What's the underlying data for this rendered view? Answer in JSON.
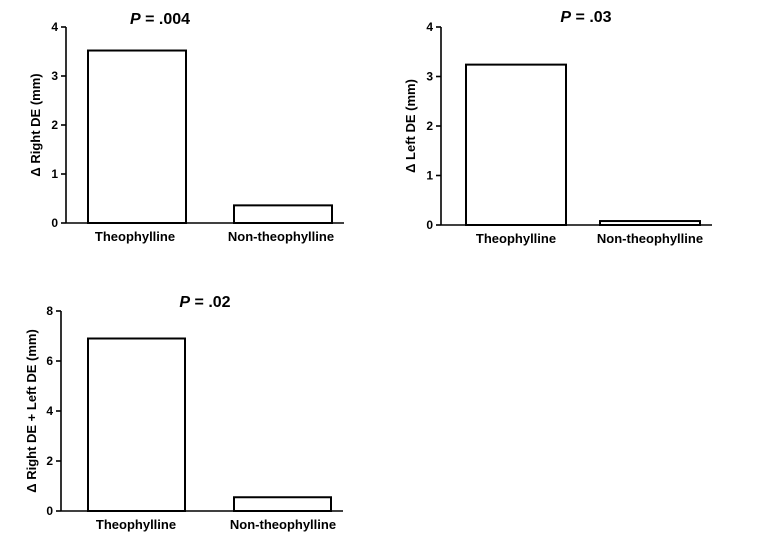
{
  "chart_data": [
    {
      "type": "bar",
      "title": "P = .004",
      "title_p": "P",
      "title_rest": " = .004",
      "ylabel": "Δ Right DE (mm)",
      "categories": [
        "Theophylline",
        "Non-theophylline"
      ],
      "values": [
        3.52,
        0.36
      ],
      "ylim": [
        0,
        4
      ],
      "yticks": [
        "0",
        "1",
        "2",
        "3",
        "4"
      ],
      "grid": false
    },
    {
      "type": "bar",
      "title": "P = .03",
      "title_p": "P",
      "title_rest": " = .03",
      "ylabel": "Δ Left DE (mm)",
      "categories": [
        "Theophylline",
        "Non-theophylline"
      ],
      "values": [
        3.24,
        0.08
      ],
      "ylim": [
        0,
        4
      ],
      "yticks": [
        "0",
        "1",
        "2",
        "3",
        "4"
      ],
      "grid": false
    },
    {
      "type": "bar",
      "title": "P = .02",
      "title_p": "P",
      "title_rest": " = .02",
      "ylabel": "Δ Right DE + Left DE (mm)",
      "categories": [
        "Theophylline",
        "Non-theophylline"
      ],
      "values": [
        6.9,
        0.55
      ],
      "ylim": [
        0,
        8
      ],
      "yticks": [
        "0",
        "2",
        "4",
        "6",
        "8"
      ],
      "grid": false
    }
  ]
}
